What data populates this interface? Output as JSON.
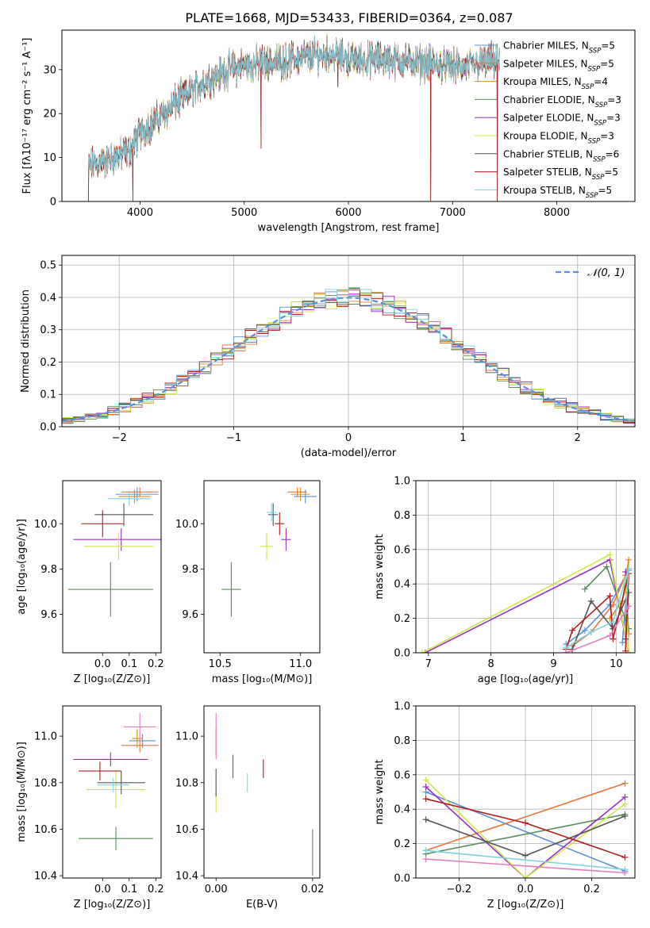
{
  "figure_title": "PLATE=1668, MJD=53433, FIBERID=0364, z=0.087",
  "models": [
    {
      "name": "Chabrier MILES, N",
      "sub": "SSP",
      "tail": "=5",
      "color": "#5b8fd9"
    },
    {
      "name": "Salpeter MILES, N",
      "sub": "SSP",
      "tail": "=5",
      "color": "#e8743b"
    },
    {
      "name": "Kroupa MILES, N",
      "sub": "SSP",
      "tail": "=4",
      "color": "#d98c1c"
    },
    {
      "name": "Chabrier ELODIE, N",
      "sub": "SSP",
      "tail": "=3",
      "color": "#5a8a5a"
    },
    {
      "name": "Salpeter ELODIE, N",
      "sub": "SSP",
      "tail": "=3",
      "color": "#9b30c0"
    },
    {
      "name": "Kroupa ELODIE, N",
      "sub": "SSP",
      "tail": "=3",
      "color": "#cde84a"
    },
    {
      "name": "Chabrier STELIB, N",
      "sub": "SSP",
      "tail": "=6",
      "color": "#555555"
    },
    {
      "name": "Salpeter STELIB, N",
      "sub": "SSP",
      "tail": "=5",
      "color": "#b01c1c"
    },
    {
      "name": "Kroupa STELIB, N",
      "sub": "SSP",
      "tail": "=5",
      "color": "#7fd3e0"
    }
  ],
  "extra_colors": {
    "pink": "#e37fbf"
  },
  "chart_data": [
    {
      "id": "spectrum",
      "type": "line",
      "xlabel": "wavelength [Angstrom, rest frame]",
      "ylabel": "Flux [fλ10⁻¹⁷ erg cm⁻² s⁻¹ A⁻¹]",
      "xlim": [
        3250,
        8750
      ],
      "ylim": [
        0,
        39
      ],
      "xticks": [
        4000,
        5000,
        6000,
        7000,
        8000
      ],
      "yticks": [
        0,
        10,
        20,
        30
      ],
      "legend": "top-right",
      "continuum": [
        [
          3500,
          8
        ],
        [
          3700,
          9.5
        ],
        [
          3900,
          11.5
        ],
        [
          4000,
          15.5
        ],
        [
          4200,
          19.5
        ],
        [
          4400,
          23.5
        ],
        [
          4600,
          27
        ],
        [
          4800,
          29.5
        ],
        [
          5000,
          31
        ],
        [
          5200,
          31.5
        ],
        [
          5400,
          32
        ],
        [
          5600,
          33
        ],
        [
          5800,
          33.5
        ],
        [
          5900,
          33
        ],
        [
          6100,
          32
        ],
        [
          6300,
          32.5
        ],
        [
          6500,
          32
        ],
        [
          6700,
          31.5
        ],
        [
          6900,
          31
        ],
        [
          7100,
          30.5
        ],
        [
          7300,
          31.5
        ],
        [
          7450,
          32
        ]
      ],
      "features": [
        {
          "x": 3505,
          "y": 0
        },
        {
          "x": 3930,
          "y": 0
        },
        {
          "x": 5160,
          "y": 12
        },
        {
          "x": 5900,
          "y": 26
        },
        {
          "x": 6790,
          "y": 0
        },
        {
          "x": 7430,
          "y": 0
        }
      ]
    },
    {
      "id": "residuals",
      "type": "histogram",
      "xlabel": "(data-model)/error",
      "ylabel": "Normed distribution",
      "xlim": [
        -2.5,
        2.5
      ],
      "ylim": [
        0,
        0.53
      ],
      "xticks": [
        -2,
        -1,
        0,
        1,
        2
      ],
      "yticks": [
        0.0,
        0.1,
        0.2,
        0.3,
        0.4,
        0.5
      ],
      "legend": "top-right",
      "gaussian_label": "𝒩(0, 1)",
      "gaussian_color": "#5b8fd9",
      "bin_width": 0.1
    },
    {
      "id": "age_vs_Z",
      "type": "scatter",
      "xlabel": "Z [log₁₀(Z/Z⊙)]",
      "ylabel": "age  [log₁₀(age/yr)]",
      "xlim": [
        -0.15,
        0.22
      ],
      "ylim": [
        9.43,
        10.19
      ],
      "xticks": [
        0.0,
        0.1,
        0.2
      ],
      "yticks": [
        9.6,
        9.8,
        10.0
      ],
      "points": [
        {
          "x": 0.13,
          "y": 10.13,
          "xerr": 0.08,
          "yerr": 0.03,
          "c": 0
        },
        {
          "x": 0.14,
          "y": 10.14,
          "xerr": 0.07,
          "yerr": 0.02,
          "c": 1
        },
        {
          "x": 0.12,
          "y": 10.12,
          "xerr": 0.06,
          "yerr": 0.03,
          "c": 2
        },
        {
          "x": 0.03,
          "y": 9.71,
          "xerr": 0.16,
          "yerr": 0.12,
          "c": 3
        },
        {
          "x": 0.07,
          "y": 9.93,
          "xerr": 0.18,
          "yerr": 0.05,
          "c": 4
        },
        {
          "x": 0.06,
          "y": 9.9,
          "xerr": 0.13,
          "yerr": 0.06,
          "c": 5
        },
        {
          "x": 0.08,
          "y": 10.04,
          "xerr": 0.11,
          "yerr": 0.05,
          "c": 6
        },
        {
          "x": 0.0,
          "y": 10.0,
          "xerr": 0.08,
          "yerr": 0.06,
          "c": 7
        },
        {
          "x": 0.1,
          "y": 10.11,
          "xerr": 0.08,
          "yerr": 0.03,
          "c": 8
        }
      ]
    },
    {
      "id": "age_vs_mass",
      "type": "scatter",
      "xlabel": "mass [log₁₀(M/M⊙)]",
      "ylabel": "",
      "xlim": [
        10.4,
        11.12
      ],
      "ylim": [
        9.43,
        10.19
      ],
      "xticks": [
        10.5,
        11.0
      ],
      "yticks": [
        9.6,
        9.8,
        10.0
      ],
      "points": [
        {
          "x": 11.03,
          "y": 10.12,
          "xerr": 0.07,
          "yerr": 0.03,
          "c": 0
        },
        {
          "x": 10.98,
          "y": 10.14,
          "xerr": 0.06,
          "yerr": 0.02,
          "c": 1
        },
        {
          "x": 11.0,
          "y": 10.13,
          "xerr": 0.06,
          "yerr": 0.03,
          "c": 2
        },
        {
          "x": 10.57,
          "y": 9.71,
          "xerr": 0.06,
          "yerr": 0.12,
          "c": 3
        },
        {
          "x": 10.91,
          "y": 9.93,
          "xerr": 0.03,
          "yerr": 0.05,
          "c": 4
        },
        {
          "x": 10.79,
          "y": 9.9,
          "xerr": 0.04,
          "yerr": 0.06,
          "c": 5
        },
        {
          "x": 10.83,
          "y": 10.04,
          "xerr": 0.03,
          "yerr": 0.05,
          "c": 6
        },
        {
          "x": 10.87,
          "y": 10.0,
          "xerr": 0.03,
          "yerr": 0.05,
          "c": 7
        },
        {
          "x": 10.82,
          "y": 10.05,
          "xerr": 0.03,
          "yerr": 0.04,
          "c": 8
        }
      ]
    },
    {
      "id": "weight_vs_age",
      "type": "line",
      "xlabel": "age  [log₁₀(age/yr)]",
      "ylabel": "mass weight",
      "xlim": [
        6.8,
        10.3
      ],
      "ylim": [
        0,
        1.0
      ],
      "xticks": [
        7,
        8,
        9,
        10
      ],
      "yticks": [
        0.0,
        0.2,
        0.4,
        0.6,
        0.8,
        1.0
      ],
      "series": [
        {
          "c": 0,
          "x": [
            9.2,
            9.5,
            9.9,
            10.2,
            10.1
          ],
          "y": [
            0.05,
            0.13,
            0.28,
            0.48,
            0.06
          ]
        },
        {
          "c": 1,
          "x": [
            9.3,
            9.6,
            9.95,
            10.15,
            10.2
          ],
          "y": [
            0.04,
            0.12,
            0.28,
            0.45,
            0.11
          ]
        },
        {
          "c": 2,
          "x": [
            9.9,
            10.1,
            10.2,
            10.15
          ],
          "y": [
            0.2,
            0.3,
            0.54,
            0.16
          ]
        },
        {
          "c": 3,
          "x": [
            9.5,
            9.85,
            10.2
          ],
          "y": [
            0.37,
            0.5,
            0.14
          ]
        },
        {
          "c": 4,
          "x": [
            6.95,
            9.9,
            10.2,
            10.15
          ],
          "y": [
            0.0,
            0.54,
            0.0,
            0.47
          ]
        },
        {
          "c": 5,
          "x": [
            6.9,
            9.9,
            10.2,
            10.15
          ],
          "y": [
            0.0,
            0.57,
            0.0,
            0.43
          ]
        },
        {
          "c": 6,
          "x": [
            9.3,
            9.6,
            9.95,
            10.2,
            10.15
          ],
          "y": [
            0.02,
            0.3,
            0.14,
            0.35,
            0.08
          ]
        },
        {
          "c": 7,
          "x": [
            9.2,
            9.3,
            9.9,
            9.95,
            10.2,
            10.15
          ],
          "y": [
            0.02,
            0.13,
            0.33,
            0.08,
            0.46,
            0.01
          ]
        },
        {
          "c": 8,
          "x": [
            9.2,
            9.6,
            9.95,
            10.2,
            10.15
          ],
          "y": [
            0.03,
            0.12,
            0.18,
            0.49,
            0.23
          ]
        },
        {
          "c": "pink",
          "x": [
            9.2,
            9.9,
            10.2
          ],
          "y": [
            0.0,
            0.1,
            0.27
          ]
        }
      ]
    },
    {
      "id": "mass_vs_Z",
      "type": "scatter",
      "xlabel": "Z [log₁₀(Z/Z⊙)]",
      "ylabel": "mass [log₁₀(M/M⊙)]",
      "xlim": [
        -0.15,
        0.22
      ],
      "ylim": [
        10.39,
        11.13
      ],
      "xticks": [
        0.0,
        0.1,
        0.2
      ],
      "yticks": [
        10.4,
        10.6,
        10.8,
        11.0
      ],
      "points": [
        {
          "x": 0.15,
          "y": 10.98,
          "xerr": 0.05,
          "yerr": 0.03,
          "c": 0
        },
        {
          "x": 0.14,
          "y": 10.96,
          "xerr": 0.07,
          "yerr": 0.03,
          "c": 1
        },
        {
          "x": 0.13,
          "y": 10.99,
          "xerr": 0.02,
          "yerr": 0.04,
          "c": 2
        },
        {
          "x": 0.05,
          "y": 10.56,
          "xerr": 0.14,
          "yerr": 0.05,
          "c": 3
        },
        {
          "x": 0.03,
          "y": 10.9,
          "xerr": 0.14,
          "yerr": 0.03,
          "c": 4
        },
        {
          "x": 0.05,
          "y": 10.77,
          "xerr": 0.11,
          "yerr": 0.08,
          "c": 5
        },
        {
          "x": 0.07,
          "y": 10.8,
          "xerr": 0.09,
          "yerr": 0.05,
          "c": 6
        },
        {
          "x": -0.01,
          "y": 10.85,
          "xerr": 0.08,
          "yerr": 0.04,
          "c": 7
        },
        {
          "x": 0.04,
          "y": 10.79,
          "xerr": 0.06,
          "yerr": 0.03,
          "c": 8
        },
        {
          "x": 0.14,
          "y": 11.04,
          "xerr": 0.06,
          "yerr": 0.06,
          "c": "pink"
        }
      ]
    },
    {
      "id": "mass_vs_EBV",
      "type": "scatter",
      "xlabel": "E(B-V)",
      "ylabel": "",
      "xlim": [
        -0.0025,
        0.0215
      ],
      "ylim": [
        10.39,
        11.13
      ],
      "xticks": [
        0.0,
        0.02
      ],
      "yticks": [
        10.4,
        10.6,
        10.8,
        11.0
      ],
      "points": [
        {
          "x": 0.0,
          "y": 10.98,
          "xerr": 0,
          "yerr": 0.06,
          "c": 2
        },
        {
          "x": 0.02,
          "y": 10.5,
          "xerr": 0,
          "yerr": 0.1,
          "c": 3
        },
        {
          "x": 0.0035,
          "y": 10.87,
          "xerr": 0,
          "yerr": 0.05,
          "c": 4
        },
        {
          "x": 0.0,
          "y": 10.72,
          "xerr": 0,
          "yerr": 0.05,
          "c": 5
        },
        {
          "x": 0.0,
          "y": 10.8,
          "xerr": 0,
          "yerr": 0.06,
          "c": 6
        },
        {
          "x": 0.0098,
          "y": 10.86,
          "xerr": 0,
          "yerr": 0.04,
          "c": 7
        },
        {
          "x": 0.0065,
          "y": 10.8,
          "xerr": 0,
          "yerr": 0.04,
          "c": 8
        },
        {
          "x": 0.0,
          "y": 11.0,
          "xerr": 0,
          "yerr": 0.1,
          "c": "pink"
        }
      ]
    },
    {
      "id": "weight_vs_Z",
      "type": "line",
      "xlabel": "Z [log₁₀(Z/Z⊙)]",
      "ylabel": "mass weight",
      "xlim": [
        -0.33,
        0.33
      ],
      "ylim": [
        0,
        1.0
      ],
      "xticks": [
        -0.2,
        0.0,
        0.2
      ],
      "yticks": [
        0.0,
        0.2,
        0.4,
        0.6,
        0.8,
        1.0
      ],
      "series": [
        {
          "c": 0,
          "x": [
            -0.3,
            0.3
          ],
          "y": [
            0.5,
            0.04
          ]
        },
        {
          "c": 1,
          "x": [
            -0.3,
            0.3
          ],
          "y": [
            0.16,
            0.55
          ]
        },
        {
          "c": 3,
          "x": [
            -0.3,
            0.3
          ],
          "y": [
            0.14,
            0.37
          ]
        },
        {
          "c": 4,
          "x": [
            -0.3,
            0.0,
            0.3
          ],
          "y": [
            0.53,
            0.0,
            0.47
          ]
        },
        {
          "c": 5,
          "x": [
            -0.3,
            0.0,
            0.3
          ],
          "y": [
            0.57,
            0.0,
            0.43
          ]
        },
        {
          "c": 6,
          "x": [
            -0.3,
            0.0,
            0.3
          ],
          "y": [
            0.34,
            0.13,
            0.36
          ]
        },
        {
          "c": 7,
          "x": [
            -0.3,
            0.0,
            0.3
          ],
          "y": [
            0.46,
            0.32,
            0.12
          ]
        },
        {
          "c": 8,
          "x": [
            -0.3,
            0.3
          ],
          "y": [
            0.16,
            0.05
          ]
        },
        {
          "c": "pink",
          "x": [
            -0.3,
            0.3
          ],
          "y": [
            0.11,
            0.03
          ]
        }
      ]
    }
  ]
}
